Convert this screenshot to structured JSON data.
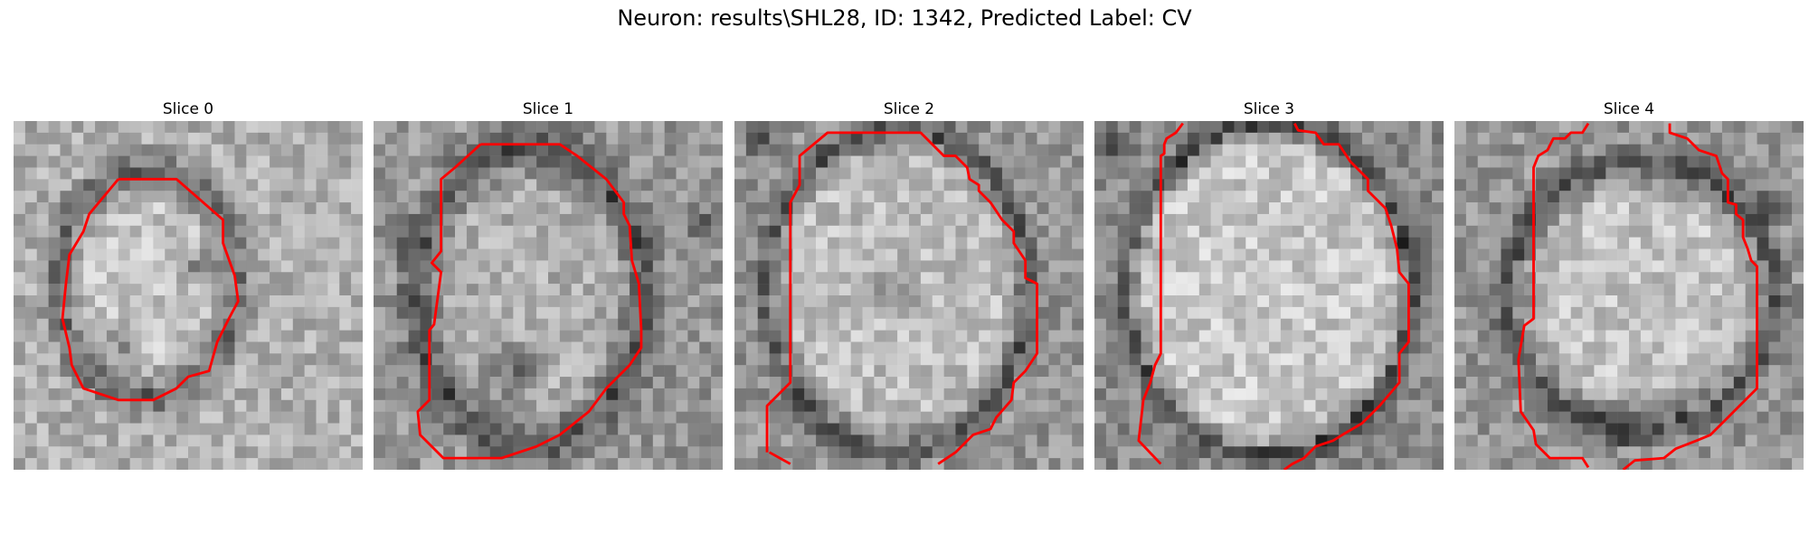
{
  "figure": {
    "title": "Neuron: results\\SHL28, ID: 1342, Predicted Label: CV"
  },
  "contour_color": "#ff0000",
  "panels": [
    {
      "title": "Slice 0"
    },
    {
      "title": "Slice 1"
    },
    {
      "title": "Slice 2"
    },
    {
      "title": "Slice 3"
    },
    {
      "title": "Slice 4"
    }
  ]
}
